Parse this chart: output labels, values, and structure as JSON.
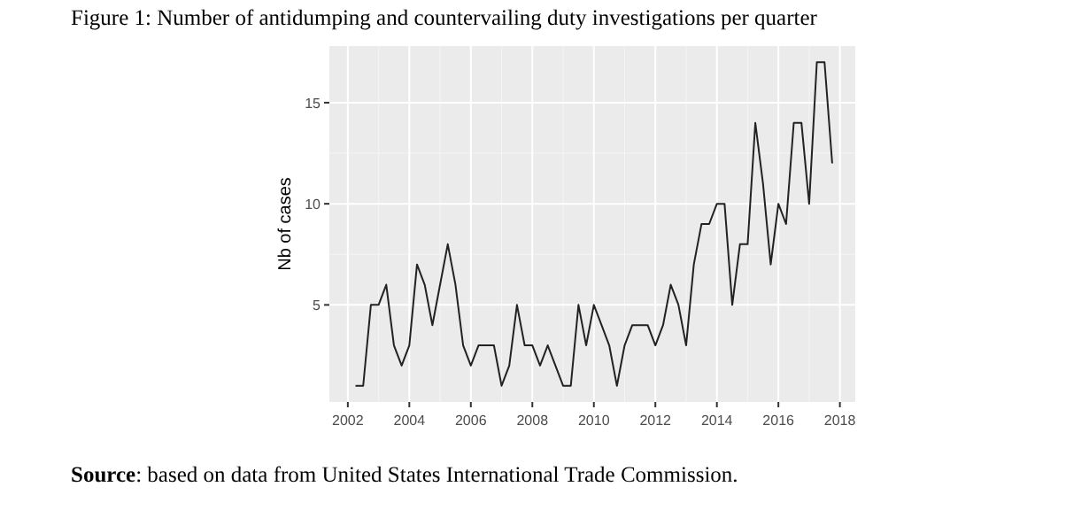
{
  "chart_data": {
    "type": "line",
    "title": "Figure 1: Number of antidumping and countervailing duty investigations per quarter",
    "ylabel": "Nb of cases",
    "x": [
      2002.25,
      2002.5,
      2002.75,
      2003,
      2003.25,
      2003.5,
      2003.75,
      2004,
      2004.25,
      2004.5,
      2004.75,
      2005,
      2005.25,
      2005.5,
      2005.75,
      2006,
      2006.25,
      2006.5,
      2006.75,
      2007,
      2007.25,
      2007.5,
      2007.75,
      2008,
      2008.25,
      2008.5,
      2008.75,
      2009,
      2009.25,
      2009.5,
      2009.75,
      2010,
      2010.25,
      2010.5,
      2010.75,
      2011,
      2011.25,
      2011.5,
      2011.75,
      2012,
      2012.25,
      2012.5,
      2012.75,
      2013,
      2013.25,
      2013.5,
      2013.75,
      2014,
      2014.25,
      2014.5,
      2014.75,
      2015,
      2015.25,
      2015.5,
      2015.75,
      2016,
      2016.25,
      2016.5,
      2016.75,
      2017,
      2017.25,
      2017.5,
      2017.75
    ],
    "series": [
      {
        "color": "#222222",
        "values": [
          1,
          1,
          5,
          5,
          6,
          3,
          2,
          3,
          7,
          6,
          4,
          6,
          8,
          6,
          3,
          2,
          3,
          3,
          3,
          1,
          2,
          5,
          3,
          3,
          2,
          3,
          2,
          1,
          1,
          5,
          3,
          5,
          4,
          3,
          1,
          3,
          4,
          4,
          4,
          3,
          4,
          6,
          5,
          3,
          7,
          9,
          9,
          10,
          10,
          5,
          8,
          8,
          14,
          11,
          7,
          10,
          9,
          14,
          14,
          10,
          17,
          17,
          12
        ]
      }
    ],
    "xlim": [
      2001.4,
      2018.5
    ],
    "xticks": [
      2002,
      2004,
      2006,
      2008,
      2010,
      2012,
      2014,
      2016,
      2018
    ],
    "ylim": [
      0.2,
      17.8
    ],
    "yticks": [
      5,
      10,
      15
    ],
    "grid": true,
    "marker": "none",
    "line_style": "solid",
    "annotations": [
      "Source: based on data from United States International Trade Commission."
    ]
  }
}
